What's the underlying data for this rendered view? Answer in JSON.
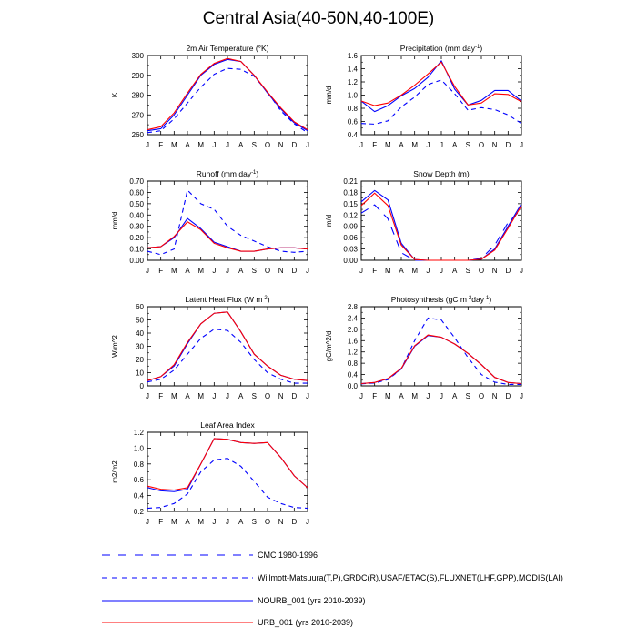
{
  "page": {
    "title": "Central Asia(40-50N,40-100E)"
  },
  "colors": {
    "obs1": "#0000ff",
    "obs2": "#0000ff",
    "nourb": "#0000ff",
    "urb": "#ff0000"
  },
  "legend": {
    "entries": [
      {
        "key": "obs1",
        "label": "CMC 1980-1996",
        "style": "dash-long"
      },
      {
        "key": "obs2",
        "label": "Willmott-Matsuura(T,P),GRDC(R),USAF/ETAC(S),FLUXNET(LHF,GPP),MODIS(LAI)",
        "style": "dash"
      },
      {
        "key": "nourb",
        "label": "NOURB_001 (yrs 2010-2039)",
        "style": "solid"
      },
      {
        "key": "urb",
        "label": "URB_001 (yrs 2010-2039)",
        "style": "solid"
      }
    ]
  },
  "chart_data": [
    {
      "type": "line",
      "title": "2m Air Temperature (°K)",
      "ylabel": "K",
      "categories": [
        "J",
        "F",
        "M",
        "A",
        "M",
        "J",
        "J",
        "A",
        "S",
        "O",
        "N",
        "D",
        "J"
      ],
      "ylim": [
        260,
        300
      ],
      "yticks": [
        260,
        270,
        280,
        290,
        300
      ],
      "ytick_labels": [
        "260",
        "270",
        "280",
        "290",
        "300"
      ],
      "series": [
        {
          "key": "obs2",
          "values": [
            261,
            262,
            268,
            276,
            284,
            290.5,
            293.5,
            293,
            289.5,
            281.5,
            272,
            265.5,
            261
          ]
        },
        {
          "key": "nourb",
          "values": [
            262,
            263,
            270,
            280,
            290,
            295.5,
            298,
            297,
            290,
            281,
            273,
            266,
            262
          ]
        },
        {
          "key": "urb",
          "values": [
            262.5,
            264,
            271,
            281,
            290.5,
            296,
            298.5,
            297,
            290,
            281.5,
            273.5,
            266.5,
            262.5
          ]
        }
      ]
    },
    {
      "type": "line",
      "title": "Precipitation (mm day-1)",
      "ylabel": "mm/d",
      "categories": [
        "J",
        "F",
        "M",
        "A",
        "M",
        "J",
        "J",
        "A",
        "S",
        "O",
        "N",
        "D",
        "J"
      ],
      "ylim": [
        0.4,
        1.6
      ],
      "yticks": [
        0.4,
        0.6,
        0.8,
        1.0,
        1.2,
        1.4,
        1.6
      ],
      "ytick_labels": [
        "0.4",
        "0.6",
        "0.8",
        "1.0",
        "1.2",
        "1.4",
        "1.6"
      ],
      "series": [
        {
          "key": "obs2",
          "values": [
            0.57,
            0.56,
            0.61,
            0.82,
            0.97,
            1.16,
            1.23,
            1.02,
            0.77,
            0.81,
            0.78,
            0.7,
            0.57
          ]
        },
        {
          "key": "nourb",
          "values": [
            0.91,
            0.75,
            0.84,
            0.99,
            1.1,
            1.27,
            1.52,
            1.09,
            0.85,
            0.92,
            1.07,
            1.07,
            0.91
          ]
        },
        {
          "key": "urb",
          "values": [
            0.91,
            0.84,
            0.88,
            1.0,
            1.15,
            1.32,
            1.5,
            1.13,
            0.85,
            0.88,
            1.02,
            1.01,
            0.9
          ]
        }
      ]
    },
    {
      "type": "line",
      "title": "Runoff (mm day-1)",
      "ylabel": "mm/d",
      "categories": [
        "J",
        "F",
        "M",
        "A",
        "M",
        "J",
        "J",
        "A",
        "S",
        "O",
        "N",
        "D",
        "J"
      ],
      "ylim": [
        0,
        0.7
      ],
      "yticks": [
        0,
        0.1,
        0.2,
        0.3,
        0.4,
        0.5,
        0.6,
        0.7
      ],
      "ytick_labels": [
        "0.00",
        "0.10",
        "0.20",
        "0.30",
        "0.40",
        "0.50",
        "0.60",
        "0.70"
      ],
      "series": [
        {
          "key": "obs2",
          "values": [
            0.08,
            0.05,
            0.1,
            0.62,
            0.5,
            0.45,
            0.3,
            0.22,
            0.17,
            0.12,
            0.08,
            0.07,
            0.08
          ]
        },
        {
          "key": "nourb",
          "values": [
            0.11,
            0.12,
            0.2,
            0.37,
            0.28,
            0.16,
            0.12,
            0.08,
            0.08,
            0.1,
            0.11,
            0.11,
            0.1
          ]
        },
        {
          "key": "urb",
          "values": [
            0.11,
            0.12,
            0.21,
            0.34,
            0.27,
            0.15,
            0.11,
            0.08,
            0.08,
            0.1,
            0.11,
            0.11,
            0.1
          ]
        }
      ]
    },
    {
      "type": "line",
      "title": "Snow Depth (m)",
      "ylabel": "m/d",
      "categories": [
        "J",
        "F",
        "M",
        "A",
        "M",
        "J",
        "J",
        "A",
        "S",
        "O",
        "N",
        "D",
        "J"
      ],
      "ylim": [
        0,
        0.21
      ],
      "yticks": [
        0,
        0.03,
        0.06,
        0.09,
        0.12,
        0.15,
        0.18,
        0.21
      ],
      "ytick_labels": [
        "0.00",
        "0.03",
        "0.06",
        "0.09",
        "0.12",
        "0.15",
        "0.18",
        "0.21"
      ],
      "series": [
        {
          "key": "obs1",
          "values": [
            0.125,
            0.147,
            0.11,
            0.02,
            0,
            0,
            0,
            0,
            0,
            0.005,
            0.04,
            0.1,
            0.135
          ]
        },
        {
          "key": "nourb",
          "values": [
            0.155,
            0.185,
            0.16,
            0.045,
            0.002,
            0,
            0,
            0,
            0,
            0.003,
            0.03,
            0.09,
            0.15
          ]
        },
        {
          "key": "urb",
          "values": [
            0.145,
            0.178,
            0.145,
            0.04,
            0.002,
            0,
            0,
            0,
            0,
            0.003,
            0.027,
            0.085,
            0.145
          ]
        }
      ]
    },
    {
      "type": "line",
      "title": "Latent Heat Flux (W m-2)",
      "ylabel": "W/m^2",
      "categories": [
        "J",
        "F",
        "M",
        "A",
        "M",
        "J",
        "J",
        "A",
        "S",
        "O",
        "N",
        "D",
        "J"
      ],
      "ylim": [
        0,
        60
      ],
      "yticks": [
        0,
        10,
        20,
        30,
        40,
        50,
        60
      ],
      "ytick_labels": [
        "0",
        "10",
        "20",
        "30",
        "40",
        "50",
        "60"
      ],
      "series": [
        {
          "key": "obs2",
          "values": [
            3,
            5,
            12,
            24,
            36,
            43,
            42,
            33,
            20,
            10,
            5,
            2,
            2
          ]
        },
        {
          "key": "nourb",
          "values": [
            4,
            7,
            15,
            32,
            47,
            55,
            56,
            41,
            24,
            15,
            8,
            5,
            4
          ]
        },
        {
          "key": "urb",
          "values": [
            4,
            7,
            16,
            33,
            47,
            55,
            56,
            41,
            24,
            15,
            8,
            5,
            4
          ]
        }
      ]
    },
    {
      "type": "line",
      "title": "Photosynthesis (gC m-2day-1)",
      "ylabel": "gC/m^2/d",
      "categories": [
        "J",
        "F",
        "M",
        "A",
        "M",
        "J",
        "J",
        "A",
        "S",
        "O",
        "N",
        "D",
        "J"
      ],
      "ylim": [
        0,
        2.8
      ],
      "yticks": [
        0,
        0.4,
        0.8,
        1.2,
        1.6,
        2.0,
        2.4,
        2.8
      ],
      "ytick_labels": [
        "0.0",
        "0.4",
        "0.8",
        "1.2",
        "1.6",
        "2.0",
        "2.4",
        "2.8"
      ],
      "series": [
        {
          "key": "obs2",
          "values": [
            0.07,
            0.1,
            0.22,
            0.6,
            1.6,
            2.4,
            2.33,
            1.7,
            1.0,
            0.4,
            0.13,
            0.05,
            0.05
          ]
        },
        {
          "key": "nourb",
          "values": [
            0.08,
            0.12,
            0.25,
            0.6,
            1.4,
            1.78,
            1.72,
            1.48,
            1.15,
            0.75,
            0.3,
            0.12,
            0.08
          ]
        },
        {
          "key": "urb",
          "values": [
            0.08,
            0.12,
            0.26,
            0.62,
            1.42,
            1.8,
            1.72,
            1.48,
            1.15,
            0.75,
            0.3,
            0.12,
            0.08
          ]
        }
      ]
    },
    {
      "type": "line",
      "title": "Leaf Area Index",
      "ylabel": "m2/m2",
      "categories": [
        "J",
        "F",
        "M",
        "A",
        "M",
        "J",
        "J",
        "A",
        "S",
        "O",
        "N",
        "D",
        "J"
      ],
      "ylim": [
        0.2,
        1.2
      ],
      "yticks": [
        0.2,
        0.4,
        0.6,
        0.8,
        1.0,
        1.2
      ],
      "ytick_labels": [
        "0.2",
        "0.4",
        "0.6",
        "0.8",
        "1.0",
        "1.2"
      ],
      "series": [
        {
          "key": "obs2",
          "values": [
            0.24,
            0.25,
            0.3,
            0.42,
            0.7,
            0.85,
            0.87,
            0.77,
            0.58,
            0.38,
            0.3,
            0.25,
            0.24
          ]
        },
        {
          "key": "nourb",
          "values": [
            0.5,
            0.46,
            0.45,
            0.48,
            0.8,
            1.12,
            1.11,
            1.07,
            1.06,
            1.07,
            0.88,
            0.65,
            0.5
          ]
        },
        {
          "key": "urb",
          "values": [
            0.52,
            0.48,
            0.47,
            0.5,
            0.8,
            1.12,
            1.11,
            1.07,
            1.06,
            1.07,
            0.88,
            0.65,
            0.5
          ]
        }
      ]
    }
  ]
}
